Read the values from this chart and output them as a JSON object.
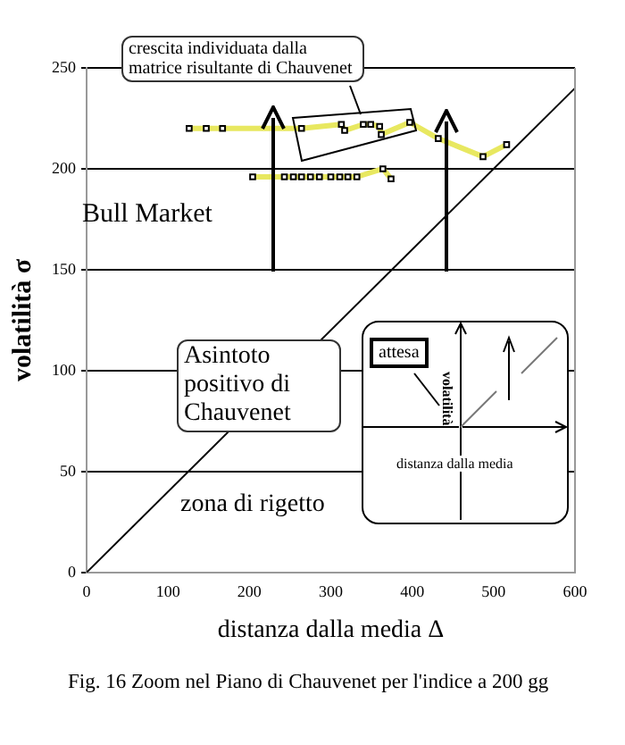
{
  "chart_data": {
    "type": "line",
    "xlabel": "distanza dalla media Δ",
    "ylabel": "volatilità σ",
    "xlim": [
      0,
      600
    ],
    "xticks": [
      0,
      100,
      200,
      300,
      400,
      500,
      600
    ],
    "ylim": [
      0,
      250
    ],
    "yticks": [
      0,
      50,
      100,
      150,
      200,
      250
    ],
    "grid": "y",
    "legend": false,
    "series": [
      {
        "color": "#e8e860",
        "marker": "square",
        "x": [
          126,
          147,
          167,
          264,
          313,
          317,
          340,
          349,
          360,
          362,
          397,
          432,
          487,
          516
        ],
        "values": [
          220,
          220,
          220,
          220,
          222,
          219,
          222,
          222,
          221,
          217,
          223,
          215,
          206,
          212
        ]
      },
      {
        "color": "#e8e860",
        "marker": "square",
        "x": [
          204,
          243,
          254,
          264,
          275,
          286,
          300,
          311,
          321,
          332,
          364,
          374
        ],
        "values": [
          196,
          196,
          196,
          196,
          196,
          196,
          196,
          196,
          196,
          196,
          200,
          195
        ]
      },
      {
        "color": "#000000",
        "marker": "none",
        "x": [
          0,
          600
        ],
        "values": [
          0,
          240
        ]
      }
    ],
    "annotations": [
      "crescita individuata dalla matrice risultante di Chauvenet",
      "Bull Market",
      "Asintoto positivo di Chauvenet",
      "zona di rigetto",
      "attesa",
      "volatilità",
      "distanza dalla media",
      "Fig. 16  Zoom nel Piano di Chauvenet per l'indice a 200 gg"
    ]
  }
}
